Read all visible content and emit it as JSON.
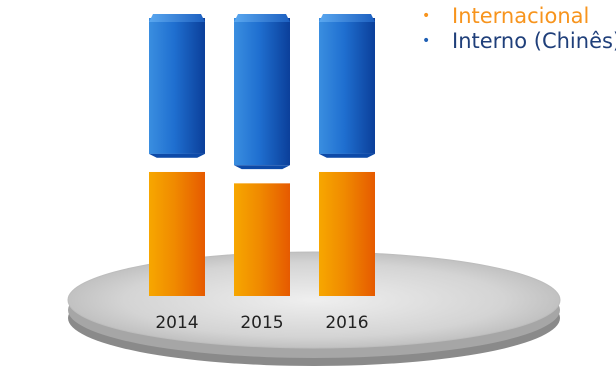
{
  "chart_data": {
    "type": "bar",
    "stacked": true,
    "categories": [
      "2014",
      "2015",
      "2016"
    ],
    "series": [
      {
        "name": "Internacional",
        "values": [
          44,
          40,
          44
        ],
        "color": "#f07d00"
      },
      {
        "name": "Interno (Chinês)",
        "values": [
          56,
          60,
          56
        ],
        "color": "#1f6fd0"
      }
    ],
    "legend_position": "top-right",
    "grid": false
  },
  "legend": {
    "items": [
      {
        "label": "Internacional",
        "color": "#f7941d"
      },
      {
        "label": "Interno (Chinês)",
        "color": "#1f5fb4"
      }
    ]
  }
}
